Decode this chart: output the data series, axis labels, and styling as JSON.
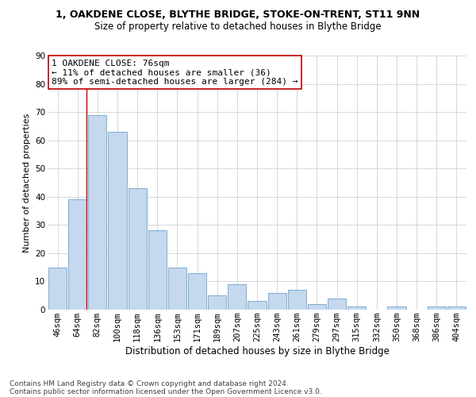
{
  "title": "1, OAKDENE CLOSE, BLYTHE BRIDGE, STOKE-ON-TRENT, ST11 9NN",
  "subtitle": "Size of property relative to detached houses in Blythe Bridge",
  "xlabel": "Distribution of detached houses by size in Blythe Bridge",
  "ylabel": "Number of detached properties",
  "categories": [
    "46sqm",
    "64sqm",
    "82sqm",
    "100sqm",
    "118sqm",
    "136sqm",
    "153sqm",
    "171sqm",
    "189sqm",
    "207sqm",
    "225sqm",
    "243sqm",
    "261sqm",
    "279sqm",
    "297sqm",
    "315sqm",
    "332sqm",
    "350sqm",
    "368sqm",
    "386sqm",
    "404sqm"
  ],
  "values": [
    15,
    39,
    69,
    63,
    43,
    28,
    15,
    13,
    5,
    9,
    3,
    6,
    7,
    2,
    4,
    1,
    0,
    1,
    0,
    1,
    1
  ],
  "bar_color": "#c5d8ed",
  "bar_edge_color": "#7badd4",
  "ylim": [
    0,
    90
  ],
  "yticks": [
    0,
    10,
    20,
    30,
    40,
    50,
    60,
    70,
    80,
    90
  ],
  "vline_x_index": 1,
  "vline_color": "#c00000",
  "annotation_text": "1 OAKDENE CLOSE: 76sqm\n← 11% of detached houses are smaller (36)\n89% of semi-detached houses are larger (284) →",
  "annotation_box_color": "#ffffff",
  "annotation_box_edge": "#c00000",
  "footer1": "Contains HM Land Registry data © Crown copyright and database right 2024.",
  "footer2": "Contains public sector information licensed under the Open Government Licence v3.0.",
  "bg_color": "#ffffff",
  "grid_color": "#c8c8c8",
  "title_fontsize": 9,
  "subtitle_fontsize": 8.5,
  "ylabel_fontsize": 8,
  "xlabel_fontsize": 8.5,
  "tick_fontsize": 7.5,
  "annotation_fontsize": 8,
  "footer_fontsize": 6.5
}
